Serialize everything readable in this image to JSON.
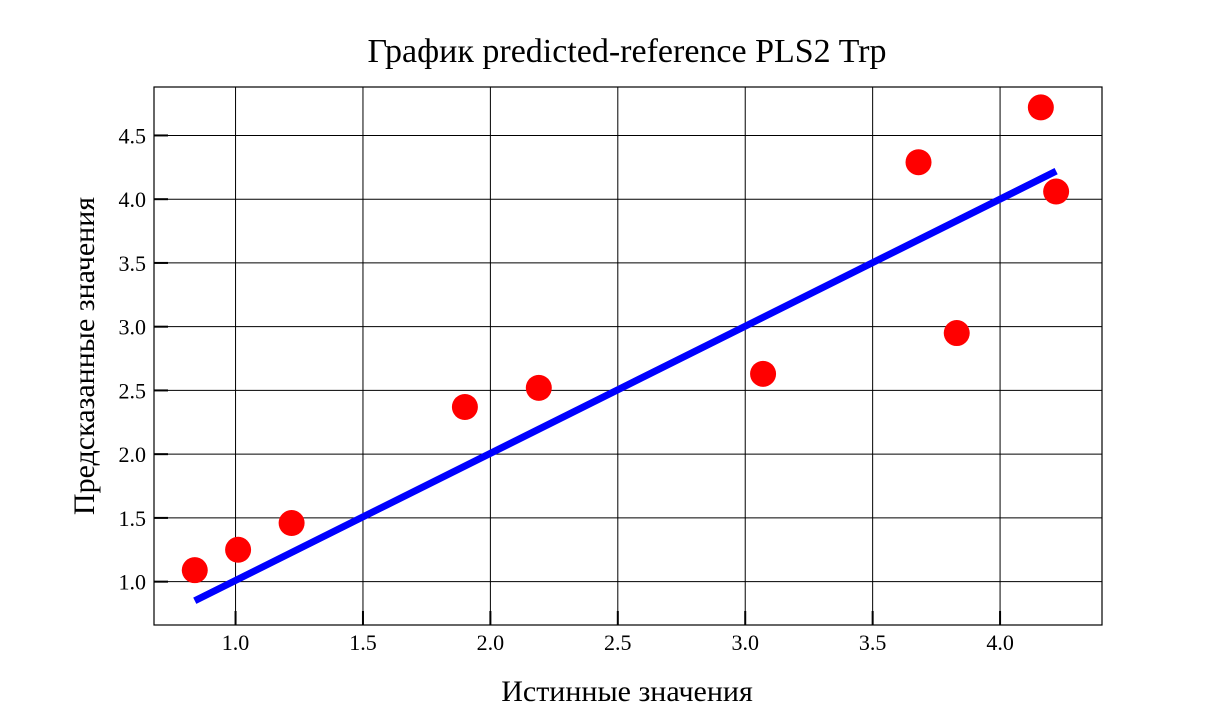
{
  "chart_data": {
    "type": "scatter",
    "title": "График predicted-reference PLS2 Trp",
    "xlabel": "Истинные значения",
    "ylabel": "Предсказанные значения",
    "xlim": [
      0.68,
      4.4
    ],
    "ylim": [
      0.66,
      4.88
    ],
    "xticks": [
      "1.0",
      "1.5",
      "2.0",
      "2.5",
      "3.0",
      "3.5",
      "4.0"
    ],
    "yticks": [
      "1.0",
      "1.5",
      "2.0",
      "2.5",
      "3.0",
      "3.5",
      "4.0",
      "4.5"
    ],
    "grid": true,
    "points": {
      "color": "#ff0000",
      "x": [
        0.84,
        1.01,
        1.22,
        1.9,
        2.19,
        3.07,
        3.68,
        3.83,
        4.16,
        4.22
      ],
      "y": [
        1.09,
        1.25,
        1.46,
        2.37,
        2.52,
        2.63,
        4.29,
        2.95,
        4.72,
        4.06
      ]
    },
    "fit_line": {
      "color": "#0000ff",
      "x": [
        0.84,
        4.22
      ],
      "y": [
        0.85,
        4.22
      ]
    }
  }
}
